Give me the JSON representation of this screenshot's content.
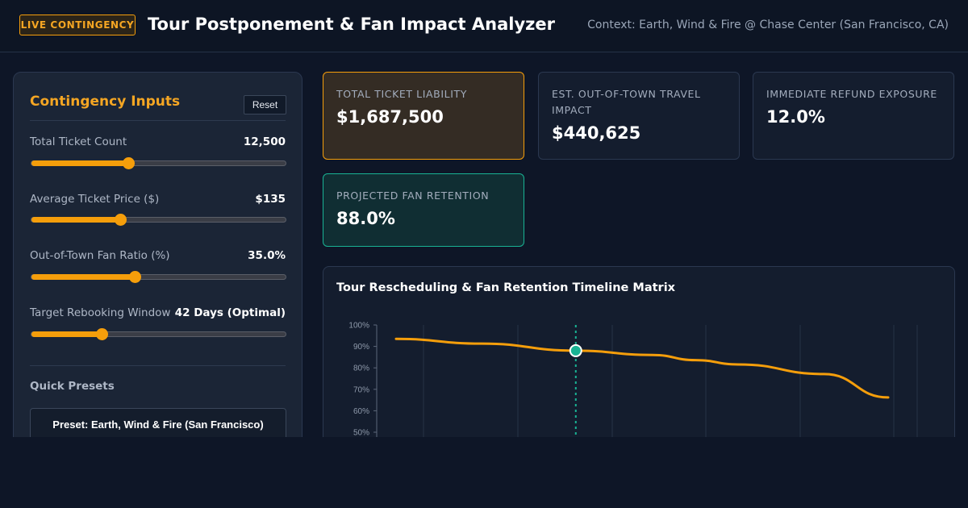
{
  "header": {
    "badge": "LIVE CONTINGENCY",
    "title": "Tour Postponement & Fan Impact Analyzer",
    "context": "Context: Earth, Wind & Fire @ Chase Center (San Francisco, CA)"
  },
  "inputs": {
    "title": "Contingency Inputs",
    "reset_label": "Reset",
    "sliders": [
      {
        "label": "Total Ticket Count",
        "value": "12,500",
        "fraction": 0.38
      },
      {
        "label": "Average Ticket Price ($)",
        "value": "$135",
        "fraction": 0.35
      },
      {
        "label": "Out-of-Town Fan Ratio (%)",
        "value": "35.0%",
        "fraction": 0.405
      },
      {
        "label": "Target Rebooking Window",
        "value": "42 Days (Optimal)",
        "fraction": 0.275
      }
    ],
    "presets_title": "Quick Presets",
    "preset_label": "Preset: Earth, Wind & Fire (San Francisco)"
  },
  "kpis": {
    "liability": {
      "label": "TOTAL TICKET LIABILITY",
      "value": "$1,687,500"
    },
    "travel": {
      "label": "EST. OUT-OF-TOWN TRAVEL IMPACT",
      "value": "$440,625"
    },
    "refund": {
      "label": "IMMEDIATE REFUND EXPOSURE",
      "value": "12.0%"
    },
    "retention": {
      "label": "PROJECTED FAN RETENTION",
      "value": "88.0%"
    }
  },
  "colors": {
    "accent": "#f59e0b",
    "retention_green": "#19b394",
    "background": "#0e1627"
  },
  "chart_data": {
    "type": "line",
    "title": "Tour Rescheduling & Fan Retention Timeline Matrix",
    "y_tick_labels": [
      "100%",
      "90%",
      "80%",
      "70%",
      "60%",
      "50%"
    ],
    "y_ticks": [
      100,
      90,
      80,
      70,
      60,
      50
    ],
    "ylim": [
      50,
      100
    ],
    "xlim": [
      0,
      115
    ],
    "grid": true,
    "series": [
      {
        "x": [
          0,
          20,
          42,
          60,
          70,
          80,
          100,
          115
        ],
        "values": [
          93.5,
          91.3,
          88.0,
          86.0,
          83.6,
          81.6,
          77.1,
          66.2
        ]
      }
    ],
    "marker": {
      "x": 42,
      "y": 88.0
    }
  }
}
